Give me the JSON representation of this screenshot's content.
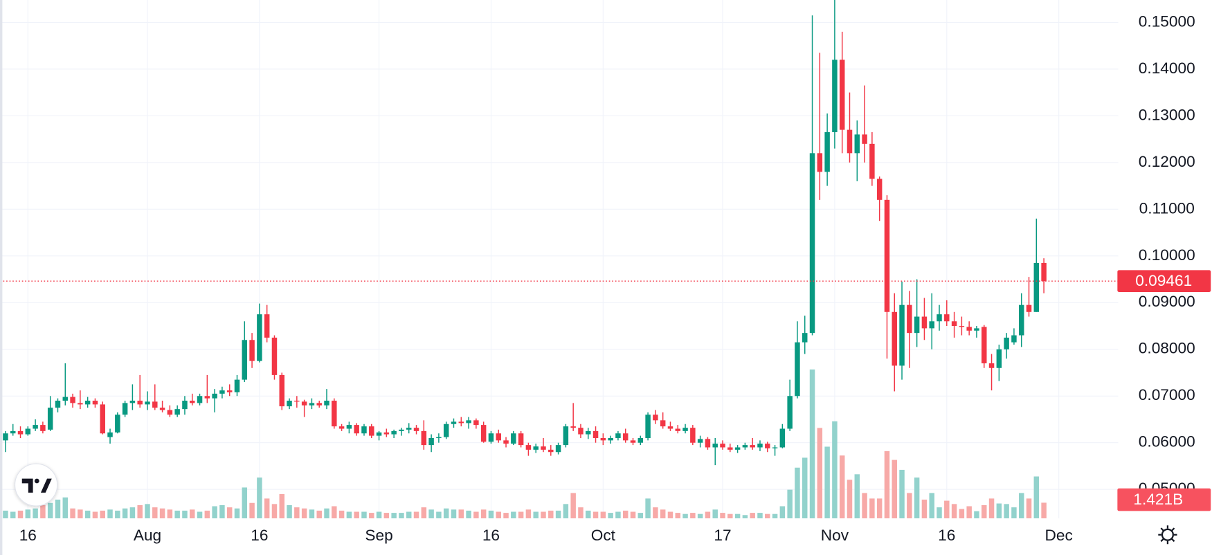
{
  "chart_data": {
    "type": "candlestick",
    "xlim": [
      -0.735,
      148.95
    ],
    "xticks": [
      {
        "value": 3,
        "label": "16"
      },
      {
        "value": 19,
        "label": "Aug"
      },
      {
        "value": 34,
        "label": "16"
      },
      {
        "value": 50,
        "label": "Sep"
      },
      {
        "value": 65,
        "label": "16"
      },
      {
        "value": 80,
        "label": "Oct"
      },
      {
        "value": 96,
        "label": "17"
      },
      {
        "value": 111,
        "label": "Nov"
      },
      {
        "value": 126,
        "label": "16"
      },
      {
        "value": 141,
        "label": "Dec"
      }
    ],
    "ylim": [
      0.0438,
      0.1548
    ],
    "yticks": [
      {
        "value": 0.05,
        "label": "0.05000"
      },
      {
        "value": 0.06,
        "label": "0.06000"
      },
      {
        "value": 0.07,
        "label": "0.07000"
      },
      {
        "value": 0.08,
        "label": "0.08000"
      },
      {
        "value": 0.09,
        "label": "0.09000"
      },
      {
        "value": 0.1,
        "label": "0.10000"
      },
      {
        "value": 0.11,
        "label": "0.11000"
      },
      {
        "value": 0.12,
        "label": "0.12000"
      },
      {
        "value": 0.13,
        "label": "0.13000"
      },
      {
        "value": 0.14,
        "label": "0.14000"
      },
      {
        "value": 0.15,
        "label": "0.15000"
      }
    ],
    "y2lim": [
      0,
      47
    ],
    "grid": true,
    "up_color": "#089981",
    "down_color": "#f23645",
    "up_volume_color": "#92d2cc",
    "down_volume_color": "#f7a9a7",
    "last_volume_color": "#f7525f",
    "open": [
      0.0605,
      0.062,
      0.0625,
      0.0618,
      0.063,
      0.0638,
      0.0628,
      0.0675,
      0.069,
      0.0698,
      0.0685,
      0.0682,
      0.069,
      0.0682,
      0.0612,
      0.0622,
      0.066,
      0.0685,
      0.069,
      0.0682,
      0.0688,
      0.0675,
      0.067,
      0.066,
      0.0672,
      0.069,
      0.0685,
      0.07,
      0.0695,
      0.0705,
      0.0712,
      0.0708,
      0.0735,
      0.082,
      0.0775,
      0.0875,
      0.0825,
      0.0745,
      0.0678,
      0.069,
      0.0688,
      0.068,
      0.0685,
      0.068,
      0.069,
      0.0635,
      0.063,
      0.0638,
      0.062,
      0.0635,
      0.0615,
      0.0622,
      0.0618,
      0.0625,
      0.0628,
      0.0632,
      0.0625,
      0.0595,
      0.061,
      0.0612,
      0.064,
      0.0645,
      0.0642,
      0.0648,
      0.0638,
      0.0602,
      0.062,
      0.0605,
      0.0598,
      0.062,
      0.0595,
      0.0585,
      0.0592,
      0.0585,
      0.058,
      0.0595,
      0.0635,
      0.0632,
      0.0618,
      0.0625,
      0.061,
      0.0605,
      0.061,
      0.062,
      0.0605,
      0.06,
      0.061,
      0.066,
      0.0648,
      0.0635,
      0.063,
      0.0625,
      0.0632,
      0.06,
      0.0608,
      0.059,
      0.0598,
      0.059,
      0.0585,
      0.059,
      0.0595,
      0.059,
      0.0598,
      0.0588,
      0.059,
      0.063,
      0.07,
      0.0815,
      0.0835,
      0.122,
      0.118,
      0.1265,
      0.142,
      0.127,
      0.122,
      0.126,
      0.124,
      0.1165,
      0.112,
      0.088,
      0.0765,
      0.0895,
      0.0835,
      0.087,
      0.0845,
      0.086,
      0.0875,
      0.086,
      0.085,
      0.0848,
      0.084,
      0.0848,
      0.077,
      0.076,
      0.08,
      0.0815,
      0.083,
      0.0895,
      0.088,
      0.0985
    ],
    "high": [
      0.0625,
      0.064,
      0.0635,
      0.0635,
      0.065,
      0.0645,
      0.07,
      0.0695,
      0.077,
      0.0705,
      0.0712,
      0.0698,
      0.0695,
      0.0688,
      0.063,
      0.0665,
      0.069,
      0.0725,
      0.0745,
      0.071,
      0.0725,
      0.069,
      0.068,
      0.068,
      0.07,
      0.0705,
      0.0705,
      0.0745,
      0.0715,
      0.072,
      0.0725,
      0.0745,
      0.086,
      0.0835,
      0.0898,
      0.0895,
      0.083,
      0.075,
      0.0695,
      0.07,
      0.0692,
      0.0695,
      0.069,
      0.0715,
      0.0695,
      0.064,
      0.0645,
      0.0642,
      0.064,
      0.064,
      0.0625,
      0.063,
      0.0628,
      0.0632,
      0.0642,
      0.0638,
      0.0648,
      0.0618,
      0.062,
      0.0645,
      0.0652,
      0.0655,
      0.0655,
      0.0652,
      0.0645,
      0.0625,
      0.0628,
      0.0612,
      0.0625,
      0.0625,
      0.06,
      0.0598,
      0.061,
      0.0595,
      0.06,
      0.064,
      0.0685,
      0.064,
      0.0632,
      0.0635,
      0.062,
      0.0615,
      0.0625,
      0.063,
      0.061,
      0.0615,
      0.0665,
      0.067,
      0.0665,
      0.0645,
      0.0638,
      0.064,
      0.0638,
      0.0615,
      0.0612,
      0.061,
      0.0605,
      0.0598,
      0.0595,
      0.06,
      0.061,
      0.0605,
      0.0602,
      0.0595,
      0.064,
      0.0735,
      0.086,
      0.0872,
      0.1515,
      0.1435,
      0.1305,
      0.155,
      0.148,
      0.135,
      0.129,
      0.1365,
      0.1265,
      0.117,
      0.113,
      0.092,
      0.0945,
      0.0925,
      0.095,
      0.091,
      0.092,
      0.0895,
      0.0905,
      0.088,
      0.087,
      0.086,
      0.085,
      0.0852,
      0.079,
      0.081,
      0.0835,
      0.0845,
      0.092,
      0.0955,
      0.108,
      0.0995
    ],
    "low": [
      0.058,
      0.0615,
      0.061,
      0.0615,
      0.0625,
      0.062,
      0.0625,
      0.0665,
      0.068,
      0.0675,
      0.0672,
      0.0675,
      0.0675,
      0.0618,
      0.0598,
      0.062,
      0.0655,
      0.067,
      0.0675,
      0.067,
      0.067,
      0.0665,
      0.0655,
      0.0655,
      0.066,
      0.068,
      0.068,
      0.0685,
      0.0665,
      0.0695,
      0.07,
      0.07,
      0.073,
      0.076,
      0.0772,
      0.0815,
      0.0735,
      0.067,
      0.0672,
      0.0675,
      0.0655,
      0.0672,
      0.0675,
      0.0672,
      0.063,
      0.0625,
      0.062,
      0.0615,
      0.0615,
      0.061,
      0.0605,
      0.0612,
      0.061,
      0.0615,
      0.062,
      0.0618,
      0.0585,
      0.058,
      0.06,
      0.0608,
      0.0632,
      0.0635,
      0.063,
      0.063,
      0.06,
      0.0598,
      0.06,
      0.059,
      0.0595,
      0.059,
      0.0572,
      0.0578,
      0.058,
      0.0572,
      0.0575,
      0.059,
      0.0625,
      0.061,
      0.0608,
      0.06,
      0.0595,
      0.0598,
      0.0605,
      0.06,
      0.0595,
      0.0595,
      0.0605,
      0.064,
      0.063,
      0.0625,
      0.062,
      0.062,
      0.0595,
      0.059,
      0.0585,
      0.0552,
      0.0585,
      0.058,
      0.0578,
      0.0585,
      0.0585,
      0.0582,
      0.058,
      0.0572,
      0.0588,
      0.0625,
      0.0695,
      0.079,
      0.083,
      0.112,
      0.115,
      0.123,
      0.122,
      0.12,
      0.116,
      0.12,
      0.115,
      0.1075,
      0.078,
      0.071,
      0.0735,
      0.076,
      0.0805,
      0.082,
      0.08,
      0.084,
      0.085,
      0.0825,
      0.083,
      0.083,
      0.0825,
      0.076,
      0.0712,
      0.0732,
      0.078,
      0.081,
      0.0805,
      0.087,
      0.088,
      0.092
    ],
    "close": [
      0.062,
      0.0625,
      0.0618,
      0.063,
      0.0638,
      0.0625,
      0.0675,
      0.069,
      0.0698,
      0.0685,
      0.0682,
      0.069,
      0.0682,
      0.062,
      0.0622,
      0.066,
      0.0685,
      0.069,
      0.0682,
      0.0688,
      0.0675,
      0.067,
      0.066,
      0.0672,
      0.069,
      0.0685,
      0.07,
      0.0695,
      0.0705,
      0.0712,
      0.0708,
      0.0735,
      0.082,
      0.0775,
      0.0875,
      0.0825,
      0.0745,
      0.0678,
      0.069,
      0.0688,
      0.068,
      0.0685,
      0.068,
      0.069,
      0.0635,
      0.063,
      0.0638,
      0.062,
      0.0635,
      0.0615,
      0.0622,
      0.0618,
      0.0625,
      0.0628,
      0.0632,
      0.0625,
      0.0595,
      0.061,
      0.0612,
      0.064,
      0.0645,
      0.0642,
      0.0648,
      0.0638,
      0.0602,
      0.062,
      0.0605,
      0.0598,
      0.062,
      0.0595,
      0.0585,
      0.0592,
      0.0585,
      0.058,
      0.0595,
      0.0635,
      0.0632,
      0.0618,
      0.0625,
      0.061,
      0.0605,
      0.061,
      0.062,
      0.0605,
      0.06,
      0.061,
      0.066,
      0.0648,
      0.0635,
      0.063,
      0.0625,
      0.0632,
      0.06,
      0.0608,
      0.059,
      0.0598,
      0.059,
      0.0585,
      0.059,
      0.0595,
      0.059,
      0.0598,
      0.0588,
      0.059,
      0.063,
      0.07,
      0.0815,
      0.0835,
      0.122,
      0.118,
      0.1265,
      0.142,
      0.127,
      0.122,
      0.126,
      0.124,
      0.1165,
      0.112,
      0.088,
      0.0765,
      0.0895,
      0.0835,
      0.087,
      0.0845,
      0.086,
      0.0875,
      0.086,
      0.085,
      0.0848,
      0.084,
      0.0845,
      0.077,
      0.076,
      0.08,
      0.0825,
      0.083,
      0.0895,
      0.088,
      0.0985,
      0.09461
    ],
    "volume": [
      0.7,
      0.6,
      0.7,
      0.8,
      0.9,
      1.2,
      1.4,
      1.7,
      1.9,
      0.9,
      0.8,
      0.7,
      0.6,
      0.7,
      0.8,
      0.7,
      0.9,
      1.0,
      1.2,
      1.3,
      1.0,
      0.9,
      0.8,
      0.7,
      0.7,
      0.8,
      0.6,
      0.7,
      1.1,
      1.2,
      1.0,
      0.9,
      2.8,
      1.4,
      3.7,
      1.8,
      1.3,
      2.2,
      1.2,
      1.0,
      0.9,
      0.8,
      0.7,
      0.9,
      1.1,
      0.7,
      0.6,
      0.6,
      0.6,
      0.5,
      0.6,
      0.5,
      0.5,
      0.5,
      0.6,
      0.6,
      1.0,
      0.8,
      0.6,
      0.9,
      0.8,
      0.8,
      0.7,
      0.6,
      0.8,
      0.7,
      0.6,
      0.5,
      0.6,
      0.6,
      0.8,
      0.6,
      0.6,
      0.7,
      0.7,
      1.3,
      2.3,
      1.0,
      0.7,
      0.6,
      0.6,
      0.5,
      0.6,
      0.7,
      0.6,
      0.5,
      1.8,
      1.0,
      0.8,
      0.6,
      0.5,
      0.4,
      0.5,
      0.4,
      0.6,
      0.8,
      0.5,
      0.4,
      0.4,
      0.3,
      0.5,
      0.5,
      0.4,
      0.4,
      1.1,
      2.6,
      4.6,
      5.5,
      13.5,
      8.2,
      6.5,
      8.8,
      5.7,
      3.5,
      4.0,
      2.3,
      1.8,
      1.8,
      6.1,
      5.3,
      4.4,
      2.3,
      3.7,
      1.7,
      2.3,
      1.0,
      1.6,
      1.3,
      0.85,
      1.1,
      0.65,
      1.2,
      1.8,
      1.35,
      1.3,
      1.0,
      2.3,
      1.8,
      3.8,
      1.421
    ],
    "last_volume_label": "1.421B"
  }
}
